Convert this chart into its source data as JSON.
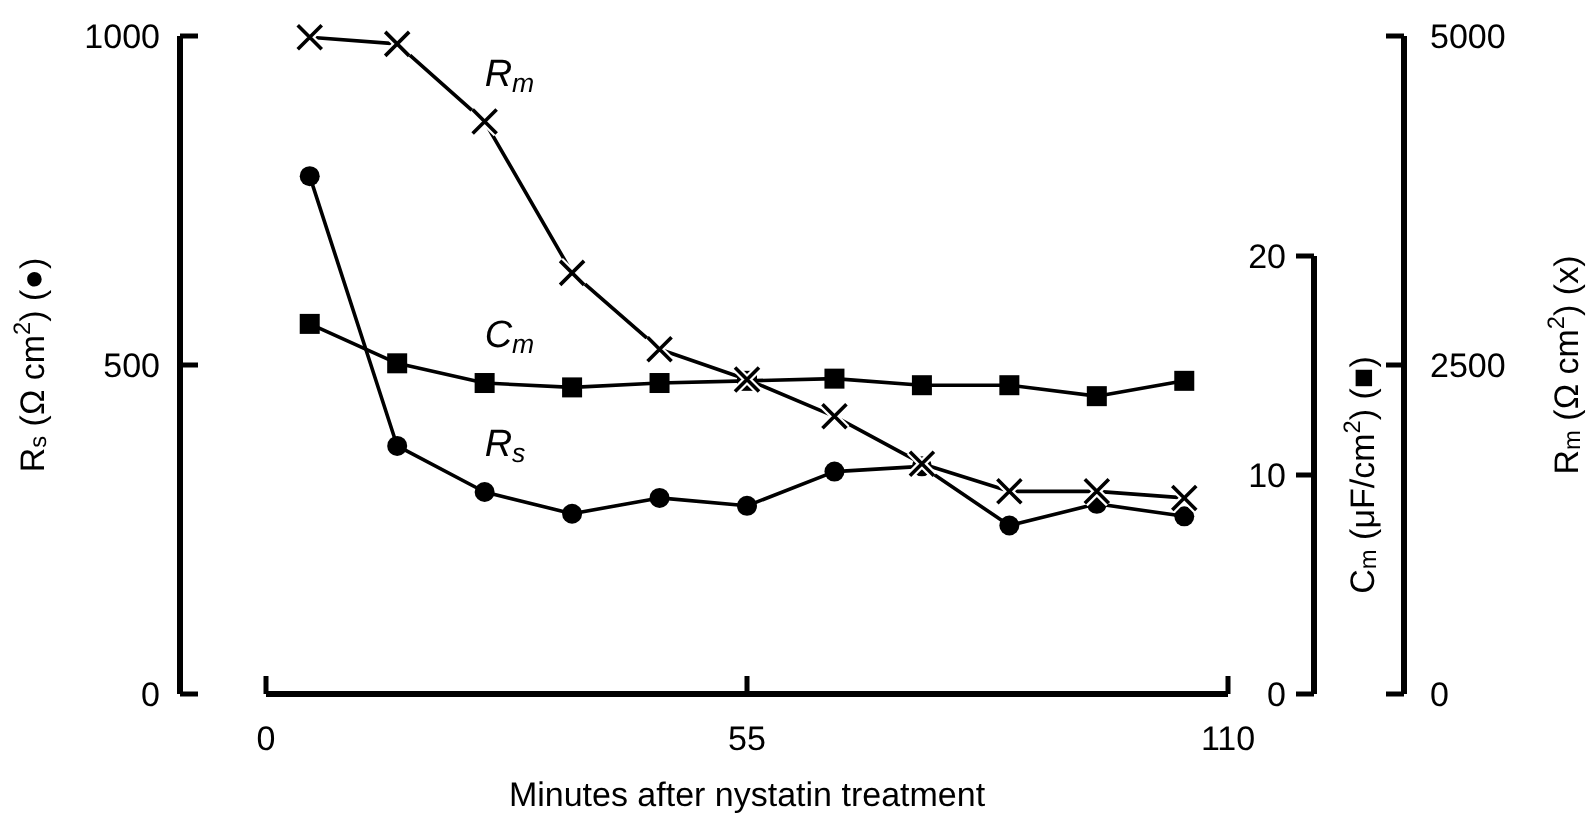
{
  "chart_data": {
    "type": "line",
    "xlabel": "Minutes after nystatin treatment",
    "ylabel": "R$_{s}$ (Ω cm$^{2}$) (●)",
    "y2label": "C$_{m}$ (μF/cm$^{2}$) (■)",
    "y3label": "R$_{m}$ (Ω cm$^{2}$) (x)",
    "x": [
      5,
      15,
      25,
      35,
      45,
      55,
      65,
      75,
      85,
      95,
      105
    ],
    "xlim": [
      0,
      110
    ],
    "xticks": [
      0,
      55,
      110
    ],
    "ylim": [
      0,
      1000
    ],
    "yticks": [
      0,
      500,
      1000
    ],
    "y2lim": [
      0,
      20
    ],
    "y2ticks": [
      0,
      10,
      20
    ],
    "y3lim": [
      0,
      5000
    ],
    "y3ticks": [
      0,
      2500,
      5000
    ],
    "grid": false,
    "line_style": "solid",
    "series": [
      {
        "name": "R$_{s}$",
        "color": "#000000",
        "marker": "circle",
        "values": [
          787,
          377,
          307,
          274,
          298,
          286,
          338,
          346,
          256,
          289,
          270
        ]
      },
      {
        "name": "C$_{m}$",
        "color": "#000000",
        "marker": "square",
        "axis": "y2",
        "values": [
          16.9,
          15.1,
          14.2,
          14.0,
          14.2,
          14.3,
          14.4,
          14.1,
          14.1,
          13.6,
          14.3
        ]
      },
      {
        "name": "R$_{m}$",
        "color": "#000000",
        "marker": "cross",
        "axis": "y3",
        "values": [
          4990,
          4940,
          4350,
          3200,
          2620,
          2390,
          2110,
          1750,
          1540,
          1540,
          1490
        ]
      }
    ]
  }
}
